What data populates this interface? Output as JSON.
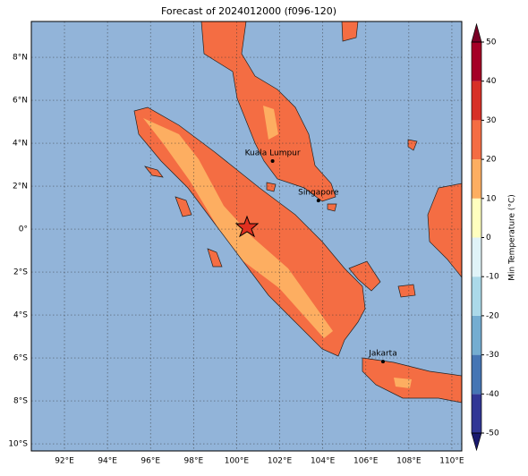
{
  "map": {
    "title": "Forecast of 2024012000 (f096-120)",
    "lonlim": [
      90.46,
      110.46
    ],
    "latlim": [
      -10.33,
      9.67
    ],
    "lonticks": [
      {
        "value": 92,
        "label": "92°E"
      },
      {
        "value": 94,
        "label": "94°E"
      },
      {
        "value": 96,
        "label": "96°E"
      },
      {
        "value": 98,
        "label": "98°E"
      },
      {
        "value": 100,
        "label": "100°E"
      },
      {
        "value": 102,
        "label": "102°E"
      },
      {
        "value": 104,
        "label": "104°E"
      },
      {
        "value": 106,
        "label": "106°E"
      },
      {
        "value": 108,
        "label": "108°E"
      },
      {
        "value": 110,
        "label": "110°E"
      }
    ],
    "latticks": [
      {
        "value": 8,
        "label": "8°N"
      },
      {
        "value": 6,
        "label": "6°N"
      },
      {
        "value": 4,
        "label": "4°N"
      },
      {
        "value": 2,
        "label": "2°N"
      },
      {
        "value": 0,
        "label": "0°"
      },
      {
        "value": -2,
        "label": "2°S"
      },
      {
        "value": -4,
        "label": "4°S"
      },
      {
        "value": -6,
        "label": "6°S"
      },
      {
        "value": -8,
        "label": "8°S"
      },
      {
        "value": -10,
        "label": "10°S"
      }
    ],
    "cities": [
      {
        "name": "Kuala Lumpur",
        "lon": 101.67,
        "lat": 3.17
      },
      {
        "name": "Singapore",
        "lon": 103.8,
        "lat": 1.33
      },
      {
        "name": "Jakarta",
        "lon": 106.8,
        "lat": -6.17
      }
    ],
    "colorbar": {
      "label": "Min Temperature (°C)",
      "lim": [
        -50,
        50
      ],
      "ticks": [
        50,
        40,
        30,
        20,
        10,
        0,
        -10,
        -20,
        -30,
        -40,
        -50
      ],
      "colors": [
        "#313695",
        "#4575b4",
        "#74add1",
        "#abd9e9",
        "#e0f3f8",
        "#ffffbf",
        "#fdae61",
        "#f46d43",
        "#d73027",
        "#a50026"
      ],
      "under_color": "#1a1a6e",
      "over_color": "#7a0026"
    }
  }
}
